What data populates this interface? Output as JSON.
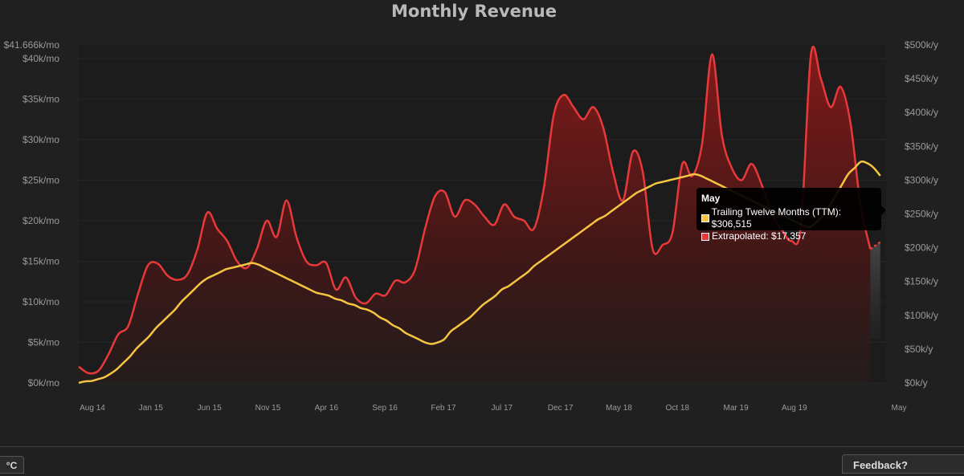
{
  "chart_data": {
    "type": "line",
    "title": "Monthly Revenue",
    "x_categories": [
      "Aug 14",
      "Jan 15",
      "Jun 15",
      "Nov 15",
      "Apr 16",
      "Sep 16",
      "Feb 17",
      "Jul 17",
      "Dec 17",
      "May 18",
      "Oct 18",
      "Mar 19",
      "Aug 19",
      "May"
    ],
    "y_left": {
      "ylim": [
        0,
        41666
      ],
      "ticks": [
        "$0k/mo",
        "$5k/mo",
        "$10k/mo",
        "$15k/mo",
        "$20k/mo",
        "$25k/mo",
        "$30k/mo",
        "$35k/mo",
        "$40k/mo",
        "$41.666k/mo"
      ],
      "tick_values": [
        0,
        5000,
        10000,
        15000,
        20000,
        25000,
        30000,
        35000,
        40000,
        41666
      ]
    },
    "y_right": {
      "ylim": [
        0,
        500000
      ],
      "ticks": [
        "$0k/y",
        "$50k/y",
        "$100k/y",
        "$150k/y",
        "$200k/y",
        "$250k/y",
        "$300k/y",
        "$350k/y",
        "$400k/y",
        "$450k/y",
        "$500k/y"
      ],
      "tick_values": [
        0,
        50000,
        100000,
        150000,
        200000,
        250000,
        300000,
        350000,
        400000,
        450000,
        500000
      ]
    },
    "series": [
      {
        "name": "Monthly revenue",
        "axis": "left",
        "color": "#e8393a",
        "x": [
          0,
          1,
          2,
          3,
          4,
          5,
          6,
          7,
          8,
          9,
          10,
          11,
          12,
          13,
          14,
          15,
          16,
          17,
          18,
          19,
          20,
          21,
          22,
          23,
          24,
          25,
          26,
          27,
          28,
          29,
          30,
          31,
          32,
          33,
          34,
          35,
          36,
          37,
          38,
          39,
          40,
          41,
          42,
          43,
          44,
          45,
          46,
          47,
          48,
          49,
          50,
          51,
          52,
          53,
          54,
          55,
          56,
          57,
          58,
          59,
          60,
          61,
          62,
          63,
          64,
          65,
          66,
          67,
          68,
          69,
          70,
          71,
          72,
          73,
          74,
          75,
          76,
          77,
          78,
          79,
          80,
          81,
          82,
          83,
          84,
          85,
          86,
          87,
          88,
          89,
          90,
          91,
          92,
          93,
          94,
          95,
          96,
          97,
          98,
          99,
          100,
          101,
          102,
          103,
          104,
          105,
          106,
          107,
          108,
          109,
          110,
          111,
          112,
          113,
          114,
          115,
          116,
          117,
          118,
          119,
          120,
          121,
          122,
          123,
          124,
          125,
          126,
          127,
          128,
          129,
          130,
          131,
          132,
          133,
          134,
          135,
          136,
          137,
          138,
          139,
          140,
          141,
          142,
          143,
          144,
          145,
          146,
          147,
          148,
          149,
          150,
          151,
          152,
          153,
          154,
          155,
          156,
          157,
          158,
          159,
          160,
          161,
          162,
          163,
          164,
          165,
          166,
          167,
          168,
          169,
          170,
          171,
          172,
          173,
          174,
          175,
          176,
          177,
          178,
          179,
          180,
          181,
          182,
          183,
          184,
          185,
          186,
          187,
          188,
          189,
          190,
          191,
          192,
          193,
          194,
          195,
          196,
          197,
          198,
          199,
          200,
          201,
          202,
          203,
          204,
          205,
          206,
          207,
          208,
          209,
          210,
          211,
          212,
          213,
          214,
          215,
          216,
          217,
          218,
          219,
          220,
          221,
          222,
          223,
          224,
          225,
          226,
          227,
          228,
          229,
          230,
          231,
          232,
          233,
          234,
          235,
          236,
          237,
          238,
          239,
          240,
          241,
          242,
          243,
          244,
          245,
          246,
          247,
          248,
          249,
          250,
          251,
          252,
          253,
          254,
          255,
          256,
          257,
          258,
          259,
          260,
          261,
          262,
          263,
          264,
          265,
          266,
          267,
          268,
          269,
          270,
          271,
          272,
          273,
          274,
          275,
          276,
          277,
          278,
          279,
          280,
          281,
          282,
          283,
          284,
          285,
          286,
          287,
          288,
          289,
          290,
          291,
          292,
          293,
          294,
          295,
          296,
          297,
          298,
          299,
          300,
          301,
          302,
          303,
          304,
          305,
          306,
          307,
          308,
          309,
          310,
          311,
          312,
          313,
          314,
          315,
          316,
          317,
          318,
          319,
          320,
          321,
          322,
          323,
          324,
          325,
          326,
          327,
          328,
          329,
          330,
          331,
          332,
          333,
          334,
          335,
          336,
          337,
          338,
          339,
          340,
          341,
          342,
          343,
          344,
          345,
          346,
          347,
          348,
          349,
          350,
          351,
          352,
          353,
          354,
          355,
          356,
          357,
          358,
          359,
          360,
          361,
          362,
          363,
          364,
          365,
          366,
          367,
          368,
          369,
          370,
          371,
          372,
          373,
          374,
          375,
          376,
          377,
          378,
          379,
          380,
          381,
          382,
          383,
          384,
          385,
          386,
          387,
          388,
          389,
          390,
          391,
          392,
          393,
          394,
          395,
          396,
          397,
          398,
          399,
          400,
          401,
          402,
          403,
          404,
          405,
          406,
          407,
          408,
          409,
          410,
          411,
          412,
          413,
          414,
          415,
          416,
          417,
          418,
          419,
          420,
          421,
          422,
          423,
          424,
          425,
          426,
          427,
          428,
          429,
          430,
          431,
          432,
          433,
          434,
          435,
          436,
          437,
          438,
          439,
          440,
          441,
          442,
          443,
          444,
          445,
          446,
          447,
          448,
          449,
          450,
          451,
          452,
          453,
          454,
          455,
          456,
          457,
          458,
          459,
          460,
          461,
          462,
          463,
          464,
          465,
          466,
          467,
          468,
          469,
          470,
          471,
          472,
          473,
          474,
          475,
          476,
          477,
          478,
          479,
          480,
          481,
          482,
          483,
          484,
          485,
          486,
          487,
          488,
          489,
          490,
          491,
          492,
          493,
          494,
          495,
          496,
          497,
          498,
          499,
          500,
          501,
          502,
          503,
          504,
          505,
          506,
          507,
          508,
          509,
          510,
          511,
          512,
          513,
          514,
          515,
          516,
          517,
          518,
          519,
          520,
          521,
          522,
          523,
          524,
          525,
          526,
          527,
          528,
          529,
          530,
          531,
          532,
          533,
          534,
          535,
          536,
          537,
          538,
          539,
          540,
          541,
          542,
          543,
          544,
          545,
          546,
          547,
          548,
          549,
          550,
          551,
          552,
          553,
          554,
          555,
          556,
          557,
          558,
          559,
          560,
          561,
          562,
          563,
          564,
          565,
          566,
          567,
          568,
          569,
          570,
          571,
          572,
          573,
          574,
          575,
          576,
          577,
          578,
          579,
          580,
          581,
          582,
          583,
          584,
          585,
          586,
          587,
          588,
          589,
          590,
          591,
          592,
          593,
          594,
          595,
          596,
          597,
          598,
          599,
          600,
          601,
          602,
          603,
          604,
          605,
          606,
          607,
          608,
          609,
          610,
          611,
          612,
          613,
          614,
          615,
          616,
          617,
          618,
          619,
          620,
          621,
          622,
          623,
          624,
          625,
          626,
          627,
          628,
          629,
          630,
          631,
          632,
          633,
          634,
          635,
          636,
          637,
          638,
          639,
          640,
          641,
          642,
          643,
          644,
          645,
          646,
          647,
          648,
          649,
          650,
          651,
          652,
          653,
          654,
          655,
          656,
          657,
          658,
          659,
          660,
          661,
          662,
          663,
          664,
          665,
          666,
          667,
          668,
          669,
          670,
          671,
          672,
          673,
          674,
          675,
          676,
          677,
          678,
          679,
          680,
          681,
          682,
          683,
          684,
          685,
          686,
          687,
          688,
          689,
          690,
          691,
          692,
          693,
          694,
          695,
          696,
          697,
          698,
          699,
          700,
          701,
          702,
          703,
          704,
          705,
          706,
          707,
          708,
          709,
          710,
          711,
          712,
          713,
          714,
          715,
          716,
          717,
          718,
          719,
          720,
          721,
          722,
          723,
          724,
          725,
          726,
          727,
          728,
          729,
          730,
          731,
          732,
          733,
          734,
          735,
          736,
          737,
          738,
          739,
          740,
          741,
          742,
          743,
          744,
          745,
          746,
          747,
          748,
          749,
          750,
          751,
          752,
          753,
          754,
          755,
          756,
          757,
          758,
          759,
          760,
          761,
          762,
          763,
          764,
          765,
          766,
          767,
          768,
          769,
          770,
          771,
          772,
          773,
          774,
          775,
          776,
          777,
          778,
          779,
          780,
          781,
          782,
          783,
          784,
          785,
          786,
          787,
          788,
          789,
          790,
          791,
          792,
          793,
          794,
          795,
          796,
          797,
          798,
          799,
          800,
          801,
          802,
          803,
          804,
          805,
          806,
          807,
          808,
          809,
          810,
          811,
          812,
          813,
          814,
          815,
          816,
          817,
          818,
          819,
          820,
          821,
          822,
          823,
          824,
          825,
          826,
          827,
          828,
          829,
          830,
          831,
          832,
          833,
          834,
          835,
          836,
          837,
          838,
          839,
          840,
          841,
          842,
          843,
          844,
          845,
          846,
          847,
          848,
          849,
          850,
          851,
          852,
          853,
          854,
          855,
          856,
          857,
          858,
          859,
          860,
          861,
          862,
          863,
          864,
          865,
          866,
          867,
          868,
          869,
          870,
          871,
          872,
          873,
          874,
          875,
          876,
          877,
          878,
          879,
          880,
          881,
          882,
          883,
          884,
          885,
          886,
          887,
          888,
          889,
          890,
          891,
          892,
          893,
          894,
          895,
          896,
          897,
          898,
          899,
          900,
          901,
          902,
          903,
          904,
          905,
          906,
          907,
          908,
          909,
          910,
          911,
          912,
          913,
          914,
          915,
          916,
          917,
          918,
          919,
          920,
          921,
          922,
          923,
          924,
          925,
          926,
          927,
          928,
          929,
          930,
          931,
          932,
          933,
          934,
          935,
          936,
          937,
          938,
          939,
          940,
          941,
          942,
          943,
          944,
          945,
          946,
          947,
          948,
          949,
          950,
          951,
          952,
          953,
          954,
          955,
          956,
          957,
          958,
          959,
          960,
          961,
          962,
          963,
          964,
          965,
          966,
          967,
          968,
          969,
          970,
          971,
          972,
          973,
          974,
          975,
          976,
          977,
          978,
          979,
          980,
          981,
          982,
          983,
          984,
          985,
          986,
          987,
          988,
          989,
          990,
          991,
          992,
          993,
          994,
          995,
          996,
          997,
          998,
          999,
          1000
        ],
        "values_placeholder": true
      }
    ]
  },
  "tooltip": {
    "title": "May",
    "ttm_label": "Trailing Twelve Months (TTM): $306,515",
    "extrapolated_label": "Extrapolated: $17,357",
    "ttm_color": "#f5c542",
    "extrapolated_color": "#e8393a"
  },
  "controls": {
    "unit_toggle": "°C",
    "feedback": "Feedback?"
  }
}
